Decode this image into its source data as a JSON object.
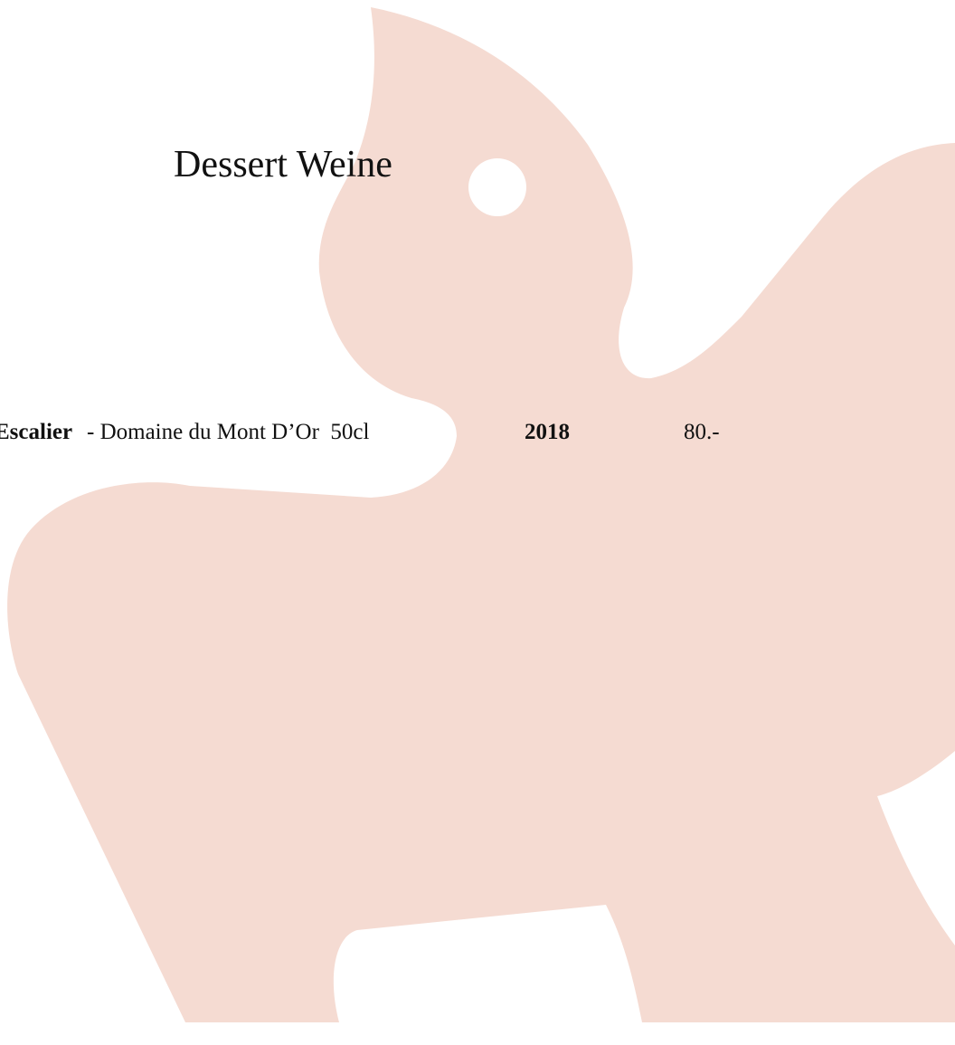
{
  "title": "Dessert Weine",
  "items": [
    {
      "name": "Escalier",
      "producer": "- Domaine du Mont D’Or  50cl",
      "vintage": 2018,
      "price": "80.-"
    }
  ]
}
